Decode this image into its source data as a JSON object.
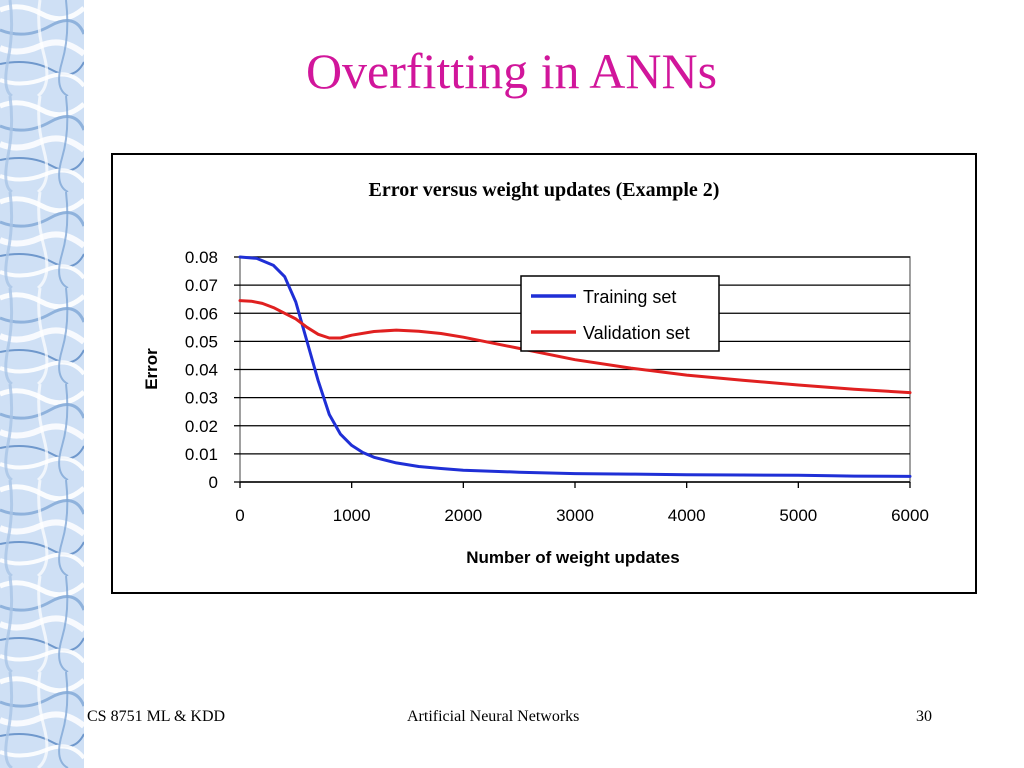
{
  "slide": {
    "title": "Overfitting in ANNs",
    "title_color": "#d1169b"
  },
  "footer": {
    "left": "CS 8751 ML & KDD",
    "center": "Artificial Neural Networks",
    "page_number": "30"
  },
  "chart_data": {
    "type": "line",
    "title": "Error versus weight updates (Example 2)",
    "xlabel": "Number of weight updates",
    "ylabel": "Error",
    "xlim": [
      0,
      6000
    ],
    "ylim": [
      0,
      0.08
    ],
    "x_ticks": [
      "0",
      "1000",
      "2000",
      "3000",
      "4000",
      "5000",
      "6000"
    ],
    "y_ticks": [
      "0",
      "0.01",
      "0.02",
      "0.03",
      "0.04",
      "0.05",
      "0.06",
      "0.07",
      "0.08"
    ],
    "grid": true,
    "legend_position": "top-right",
    "series": [
      {
        "name": "Training set",
        "color": "#1f2fd6",
        "x": [
          0,
          150,
          300,
          400,
          500,
          600,
          700,
          800,
          900,
          1000,
          1100,
          1200,
          1400,
          1600,
          1800,
          2000,
          2500,
          3000,
          3500,
          4000,
          4500,
          5000,
          5300,
          5500,
          6000
        ],
        "y": [
          0.08,
          0.0795,
          0.077,
          0.073,
          0.064,
          0.05,
          0.036,
          0.024,
          0.017,
          0.013,
          0.0105,
          0.0088,
          0.0068,
          0.0055,
          0.0048,
          0.0042,
          0.0035,
          0.003,
          0.0028,
          0.0026,
          0.0025,
          0.0024,
          0.0022,
          0.0021,
          0.002
        ]
      },
      {
        "name": "Validation set",
        "color": "#e02020",
        "x": [
          0,
          100,
          200,
          300,
          400,
          500,
          600,
          700,
          800,
          900,
          1000,
          1200,
          1400,
          1600,
          1800,
          2000,
          2500,
          3000,
          3500,
          4000,
          4500,
          5000,
          5500,
          6000
        ],
        "y": [
          0.0645,
          0.0643,
          0.0635,
          0.062,
          0.06,
          0.058,
          0.055,
          0.0525,
          0.0512,
          0.0512,
          0.0522,
          0.0535,
          0.054,
          0.0536,
          0.0528,
          0.0515,
          0.0475,
          0.0435,
          0.0405,
          0.038,
          0.0362,
          0.0345,
          0.033,
          0.0318
        ]
      }
    ]
  }
}
